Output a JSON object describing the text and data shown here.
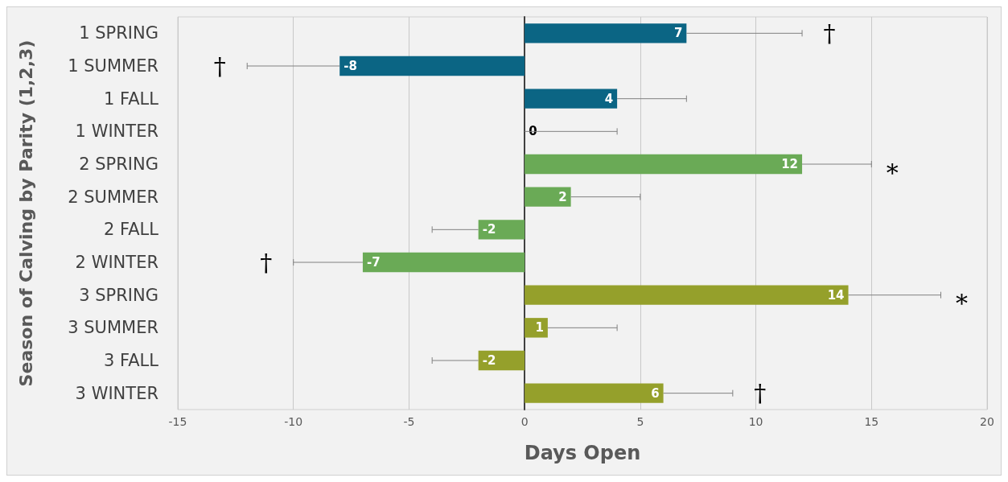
{
  "chart_data": {
    "type": "bar",
    "orientation": "horizontal",
    "xlabel": "Days Open",
    "ylabel": "Season of Calving by Parity (1,2,3)",
    "categories": [
      "1 SPRING",
      "1 SUMMER",
      "1 FALL",
      "1 WINTER",
      "2 SPRING",
      "2 SUMMER",
      "2 FALL",
      "2 WINTER",
      "3 SPRING",
      "3 SUMMER",
      "3 FALL",
      "3 WINTER"
    ],
    "values": [
      7,
      -8,
      4,
      0,
      12,
      2,
      -2,
      -7,
      14,
      1,
      -2,
      6
    ],
    "colors": [
      "#0b6584",
      "#0b6584",
      "#0b6584",
      "#0b6584",
      "#6aaa56",
      "#6aaa56",
      "#6aaa56",
      "#6aaa56",
      "#95a02b",
      "#95a02b",
      "#95a02b",
      "#95a02b"
    ],
    "errors": [
      [
        7,
        12
      ],
      [
        -12,
        -8
      ],
      [
        4,
        7
      ],
      [
        0,
        4
      ],
      [
        12,
        15
      ],
      [
        2,
        5
      ],
      [
        -4,
        -2
      ],
      [
        -10,
        -7
      ],
      [
        14,
        18
      ],
      [
        1,
        4
      ],
      [
        -4,
        -2
      ],
      [
        6,
        9
      ]
    ],
    "data_labels": true,
    "annotations": [
      {
        "text": "†",
        "x": 12,
        "y": "1 SPRING"
      },
      {
        "text": "†",
        "x": -12,
        "y": "1 SUMMER"
      },
      {
        "text": "*",
        "x": 15,
        "y": "2 SPRING"
      },
      {
        "text": "†",
        "x": -10,
        "y": "2 WINTER"
      },
      {
        "text": "*",
        "x": 18,
        "y": "3 SPRING"
      },
      {
        "text": "†",
        "x": 9,
        "y": "3 WINTER"
      }
    ],
    "xlim": [
      -15,
      20
    ],
    "xticks": [
      -15,
      -10,
      -5,
      0,
      5,
      10,
      15,
      20
    ],
    "grid": "x"
  }
}
